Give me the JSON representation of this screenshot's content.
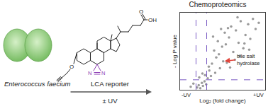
{
  "title": "Chemoproteomics",
  "organism": "Enterococcus faecium",
  "reporter": {
    "label": "LCA reporter",
    "atoms": [
      "O",
      "O",
      "OH",
      "N",
      "N"
    ]
  },
  "condition": "± UV",
  "chart_data": {
    "type": "scatter",
    "x_label": "Log₂ (fold change)",
    "y_label": "- Log P value",
    "xlim": [
      -4,
      12
    ],
    "ylim": [
      0,
      10
    ],
    "tick_labels": false,
    "grid": false,
    "color": "#9a9a9a",
    "x": [
      -0.8,
      -0.5,
      -0.2,
      0.1,
      0.3,
      0.6,
      0.9,
      -0.4,
      0.2,
      0.7,
      1.5,
      2.0,
      2.4,
      2.8,
      3.1,
      3.5,
      3.9,
      4.4,
      4.8,
      5.2,
      5.6,
      6.0,
      6.5,
      7.0,
      7.4,
      7.9,
      8.3,
      8.8,
      9.2,
      9.7,
      10.2,
      10.8,
      1.8,
      2.6,
      3.3,
      4.6,
      5.4,
      6.3,
      7.2,
      8.1,
      9.0,
      2.2,
      3.7,
      5.0,
      6.8,
      1.2,
      1.4,
      -1.5,
      -2.0
    ],
    "y": [
      0.3,
      0.6,
      0.2,
      0.9,
      0.5,
      1.1,
      0.7,
      1.6,
      2.1,
      1.9,
      2.5,
      3.4,
      5.1,
      4.2,
      6.3,
      2.8,
      5.6,
      7.4,
      3.5,
      6.8,
      8.2,
      4.9,
      7.7,
      6.1,
      8.9,
      5.4,
      7.1,
      8.5,
      6.6,
      9.2,
      7.9,
      8.7,
      1.8,
      2.2,
      4.6,
      5.9,
      2.9,
      3.9,
      4.4,
      6.0,
      5.2,
      6.9,
      7.9,
      8.0,
      9.4,
      1.5,
      3.0,
      0.8,
      0.4
    ],
    "thresholds": {
      "x": [
        -1,
        1
      ],
      "y": 1.3
    },
    "end_labels": [
      "-UV",
      "+UV"
    ],
    "highlight": {
      "label": [
        "bile salt",
        "hydrolase"
      ],
      "x": 4.1,
      "y": 3.7,
      "color": "#e0443a"
    }
  }
}
